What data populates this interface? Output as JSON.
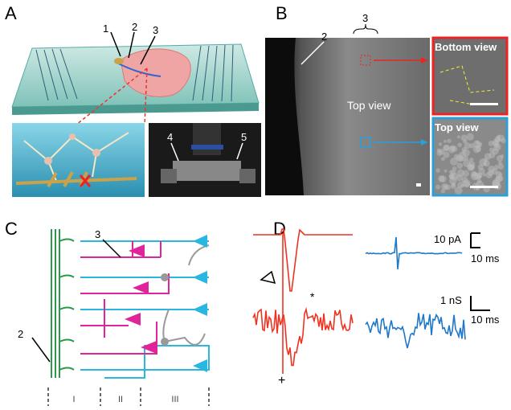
{
  "panels": {
    "a": {
      "label": "A",
      "markers": [
        "1",
        "2",
        "3",
        "4",
        "5"
      ]
    },
    "b": {
      "label": "B",
      "markers": [
        "2",
        "3"
      ],
      "center_label": "Top view",
      "insets": [
        "Bottom view",
        "Top view"
      ]
    },
    "c": {
      "label": "C",
      "markers": [
        "3",
        "2"
      ],
      "layers": [
        "I",
        "II",
        "III"
      ]
    },
    "d": {
      "label": "D",
      "scale_bars": [
        {
          "y": "10 pA",
          "x": "10 ms"
        },
        {
          "y": "1 nS",
          "x": "10 ms"
        }
      ],
      "marks": [
        "*",
        "+"
      ]
    }
  }
}
